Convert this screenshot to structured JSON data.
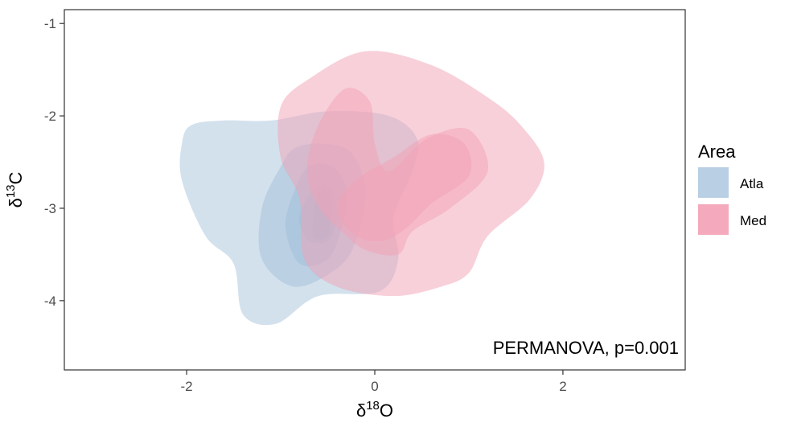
{
  "chart_data": {
    "type": "density-contour",
    "title": "",
    "xlabel": {
      "symbol": "δ",
      "sup": "18",
      "base": "O"
    },
    "ylabel": {
      "symbol": "δ",
      "sup": "13",
      "base": "C"
    },
    "xlim": [
      -3.3,
      3.3
    ],
    "ylim": [
      -4.75,
      -0.85
    ],
    "x_ticks": [
      -2,
      0,
      2
    ],
    "x_tick_labels": [
      "-2",
      "0",
      "2"
    ],
    "y_ticks": [
      -1,
      -2,
      -3,
      -4
    ],
    "y_tick_labels": [
      "-1",
      "-2",
      "-3",
      "-4"
    ],
    "grid": false,
    "legend": {
      "title": "Area",
      "position": "right",
      "entries": [
        {
          "label": "Atla",
          "color": "#b9cfe3"
        },
        {
          "label": "Med",
          "color": "#f4aabc"
        }
      ]
    },
    "annotation": "PERMANOVA, p=0.001",
    "annotation_position": "bottom-right",
    "series": [
      {
        "name": "Atla",
        "color": "#9ebcd8",
        "opacity": 0.45,
        "levels": [
          [
            [
              -2.05,
              -2.3
            ],
            [
              -1.95,
              -2.1
            ],
            [
              -1.6,
              -2.05
            ],
            [
              -1.1,
              -2.05
            ],
            [
              -0.5,
              -1.95
            ],
            [
              0.15,
              -2.0
            ],
            [
              0.45,
              -2.25
            ],
            [
              0.4,
              -2.6
            ],
            [
              0.2,
              -3.1
            ],
            [
              0.25,
              -3.55
            ],
            [
              0.05,
              -3.9
            ],
            [
              -0.6,
              -3.95
            ],
            [
              -1.05,
              -4.25
            ],
            [
              -1.4,
              -4.15
            ],
            [
              -1.5,
              -3.6
            ],
            [
              -1.8,
              -3.3
            ],
            [
              -2.05,
              -2.7
            ]
          ],
          [
            [
              -1.0,
              -2.55
            ],
            [
              -0.85,
              -2.35
            ],
            [
              -0.55,
              -2.3
            ],
            [
              -0.25,
              -2.4
            ],
            [
              -0.1,
              -2.8
            ],
            [
              -0.2,
              -3.35
            ],
            [
              -0.4,
              -3.65
            ],
            [
              -0.85,
              -3.85
            ],
            [
              -1.2,
              -3.55
            ],
            [
              -1.2,
              -3.0
            ]
          ],
          [
            [
              -0.85,
              -2.8
            ],
            [
              -0.7,
              -2.55
            ],
            [
              -0.45,
              -2.55
            ],
            [
              -0.3,
              -2.8
            ],
            [
              -0.35,
              -3.2
            ],
            [
              -0.5,
              -3.55
            ],
            [
              -0.8,
              -3.6
            ],
            [
              -0.95,
              -3.2
            ]
          ],
          [
            [
              -0.75,
              -2.95
            ],
            [
              -0.6,
              -2.75
            ],
            [
              -0.45,
              -2.8
            ],
            [
              -0.4,
              -3.1
            ],
            [
              -0.5,
              -3.35
            ],
            [
              -0.7,
              -3.35
            ],
            [
              -0.8,
              -3.15
            ]
          ],
          [
            [
              -0.6,
              -2.85
            ],
            [
              -0.5,
              -2.8
            ],
            [
              -0.45,
              -3.0
            ],
            [
              -0.5,
              -3.3
            ],
            [
              -0.65,
              -3.3
            ],
            [
              -0.65,
              -3.05
            ]
          ]
        ]
      },
      {
        "name": "Med",
        "color": "#f2a2b6",
        "opacity": 0.5,
        "levels": [
          [
            [
              -1.0,
              -1.9
            ],
            [
              -0.7,
              -1.6
            ],
            [
              -0.1,
              -1.3
            ],
            [
              0.6,
              -1.45
            ],
            [
              1.2,
              -1.8
            ],
            [
              1.55,
              -2.1
            ],
            [
              1.8,
              -2.5
            ],
            [
              1.65,
              -2.9
            ],
            [
              1.2,
              -3.3
            ],
            [
              1.0,
              -3.7
            ],
            [
              0.7,
              -3.85
            ],
            [
              0.2,
              -3.95
            ],
            [
              -0.4,
              -3.85
            ],
            [
              -0.75,
              -3.55
            ],
            [
              -0.8,
              -2.9
            ],
            [
              -1.0,
              -2.45
            ]
          ],
          [
            [
              -0.7,
              -2.4
            ],
            [
              -0.55,
              -2.0
            ],
            [
              -0.3,
              -1.7
            ],
            [
              -0.05,
              -1.85
            ],
            [
              0.0,
              -2.3
            ],
            [
              0.15,
              -2.6
            ],
            [
              0.55,
              -2.25
            ],
            [
              1.0,
              -2.15
            ],
            [
              1.2,
              -2.6
            ],
            [
              0.8,
              -3.0
            ],
            [
              0.4,
              -3.25
            ],
            [
              0.25,
              -3.5
            ],
            [
              -0.1,
              -3.45
            ],
            [
              -0.35,
              -3.25
            ],
            [
              -0.55,
              -3.05
            ],
            [
              -0.7,
              -2.75
            ]
          ],
          [
            [
              -0.4,
              -3.0
            ],
            [
              -0.2,
              -2.7
            ],
            [
              0.2,
              -2.45
            ],
            [
              0.6,
              -2.2
            ],
            [
              0.95,
              -2.3
            ],
            [
              1.0,
              -2.65
            ],
            [
              0.6,
              -2.95
            ],
            [
              0.35,
              -3.2
            ],
            [
              0.1,
              -3.35
            ],
            [
              -0.2,
              -3.3
            ]
          ]
        ]
      }
    ]
  }
}
